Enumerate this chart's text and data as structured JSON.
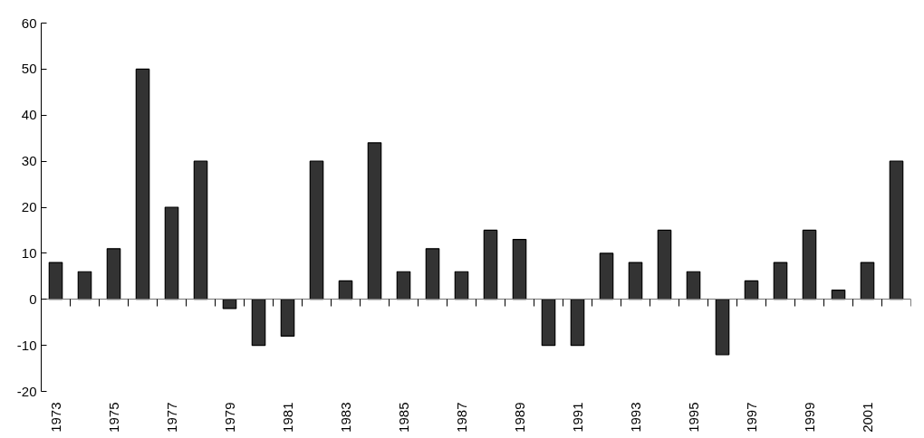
{
  "chart_data": {
    "type": "bar",
    "categories": [
      "1973",
      null,
      "1975",
      null,
      "1977",
      null,
      "1979",
      null,
      "1981",
      null,
      "1983",
      null,
      "1985",
      null,
      "1987",
      null,
      "1989",
      null,
      "1991",
      null,
      "1993",
      null,
      "1995",
      null,
      "1997",
      null,
      "1999",
      null,
      "2001",
      null
    ],
    "values": [
      8,
      6,
      11,
      50,
      20,
      30,
      -2,
      -10,
      -8,
      30,
      4,
      34,
      6,
      11,
      6,
      15,
      13,
      -10,
      -10,
      10,
      8,
      15,
      6,
      -12,
      4,
      8,
      15,
      2,
      8,
      30
    ],
    "color": "#333333",
    "ylim": [
      -20,
      60
    ],
    "yticks": [
      -20,
      -10,
      0,
      10,
      20,
      30,
      40,
      50,
      60
    ]
  }
}
